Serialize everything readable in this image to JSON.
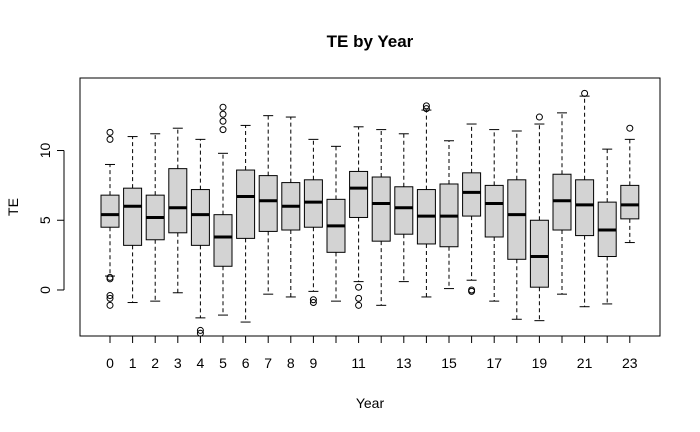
{
  "chart_data": {
    "type": "boxplot",
    "title": "TE by Year",
    "xlabel": "Year",
    "ylabel": "TE",
    "box_fill": "#d3d3d3",
    "ylim": [
      -3.3,
      15.2
    ],
    "y_ticks": [
      0,
      5,
      10
    ],
    "x_tick_labels_shown": [
      "0",
      "1",
      "2",
      "3",
      "4",
      "5",
      "6",
      "7",
      "8",
      "9",
      "11",
      "13",
      "15",
      "17",
      "19",
      "21",
      "23"
    ],
    "boxes": [
      {
        "year": 0,
        "whisker_low": 1.0,
        "q1": 4.5,
        "median": 5.4,
        "q3": 6.8,
        "whisker_high": 9.0,
        "outliers": [
          11.3,
          10.8,
          0.9,
          0.8,
          -0.4,
          -0.6,
          -1.1
        ]
      },
      {
        "year": 1,
        "whisker_low": -0.9,
        "q1": 3.2,
        "median": 6.0,
        "q3": 7.3,
        "whisker_high": 11.0,
        "outliers": []
      },
      {
        "year": 2,
        "whisker_low": -0.8,
        "q1": 3.6,
        "median": 5.2,
        "q3": 6.8,
        "whisker_high": 11.2,
        "outliers": []
      },
      {
        "year": 3,
        "whisker_low": -0.2,
        "q1": 4.1,
        "median": 5.9,
        "q3": 8.7,
        "whisker_high": 11.6,
        "outliers": []
      },
      {
        "year": 4,
        "whisker_low": -2.0,
        "q1": 3.2,
        "median": 5.4,
        "q3": 7.2,
        "whisker_high": 10.8,
        "outliers": [
          -2.9,
          -3.1
        ]
      },
      {
        "year": 5,
        "whisker_low": -1.8,
        "q1": 1.7,
        "median": 3.8,
        "q3": 5.4,
        "whisker_high": 9.8,
        "outliers": [
          13.1,
          12.6,
          12.1,
          11.5
        ]
      },
      {
        "year": 6,
        "whisker_low": -2.3,
        "q1": 3.7,
        "median": 6.7,
        "q3": 8.6,
        "whisker_high": 11.8,
        "outliers": []
      },
      {
        "year": 7,
        "whisker_low": -0.3,
        "q1": 4.2,
        "median": 6.4,
        "q3": 8.2,
        "whisker_high": 12.5,
        "outliers": []
      },
      {
        "year": 8,
        "whisker_low": -0.5,
        "q1": 4.3,
        "median": 6.0,
        "q3": 7.7,
        "whisker_high": 12.4,
        "outliers": []
      },
      {
        "year": 9,
        "whisker_low": -0.1,
        "q1": 4.5,
        "median": 6.3,
        "q3": 7.9,
        "whisker_high": 10.8,
        "outliers": [
          -0.7,
          -0.9
        ]
      },
      {
        "year": 10,
        "whisker_low": -0.8,
        "q1": 2.7,
        "median": 4.6,
        "q3": 6.5,
        "whisker_high": 10.3,
        "outliers": []
      },
      {
        "year": 11,
        "whisker_low": 0.6,
        "q1": 5.2,
        "median": 7.3,
        "q3": 8.5,
        "whisker_high": 11.7,
        "outliers": [
          0.2,
          -0.6,
          -1.1
        ]
      },
      {
        "year": 12,
        "whisker_low": -1.1,
        "q1": 3.5,
        "median": 6.2,
        "q3": 8.1,
        "whisker_high": 11.5,
        "outliers": []
      },
      {
        "year": 13,
        "whisker_low": 0.6,
        "q1": 4.0,
        "median": 5.9,
        "q3": 7.4,
        "whisker_high": 11.2,
        "outliers": []
      },
      {
        "year": 14,
        "whisker_low": -0.5,
        "q1": 3.3,
        "median": 5.3,
        "q3": 7.2,
        "whisker_high": 12.9,
        "outliers": [
          13.2,
          13.0
        ]
      },
      {
        "year": 15,
        "whisker_low": 0.1,
        "q1": 3.1,
        "median": 5.3,
        "q3": 7.6,
        "whisker_high": 10.7,
        "outliers": []
      },
      {
        "year": 16,
        "whisker_low": 0.7,
        "q1": 5.3,
        "median": 7.0,
        "q3": 8.4,
        "whisker_high": 11.9,
        "outliers": [
          0.0,
          -0.1
        ]
      },
      {
        "year": 17,
        "whisker_low": -0.8,
        "q1": 3.8,
        "median": 6.2,
        "q3": 7.5,
        "whisker_high": 11.5,
        "outliers": []
      },
      {
        "year": 18,
        "whisker_low": -2.1,
        "q1": 2.2,
        "median": 5.4,
        "q3": 7.9,
        "whisker_high": 11.4,
        "outliers": []
      },
      {
        "year": 19,
        "whisker_low": -2.2,
        "q1": 0.2,
        "median": 2.4,
        "q3": 5.0,
        "whisker_high": 11.9,
        "outliers": [
          12.4
        ]
      },
      {
        "year": 20,
        "whisker_low": -0.3,
        "q1": 4.3,
        "median": 6.4,
        "q3": 8.3,
        "whisker_high": 12.7,
        "outliers": []
      },
      {
        "year": 21,
        "whisker_low": -1.2,
        "q1": 3.9,
        "median": 6.1,
        "q3": 7.9,
        "whisker_high": 13.9,
        "outliers": [
          14.1
        ]
      },
      {
        "year": 22,
        "whisker_low": -1.0,
        "q1": 2.4,
        "median": 4.3,
        "q3": 6.3,
        "whisker_high": 10.1,
        "outliers": []
      },
      {
        "year": 23,
        "whisker_low": 3.4,
        "q1": 5.1,
        "median": 6.1,
        "q3": 7.5,
        "whisker_high": 10.8,
        "outliers": [
          11.6
        ]
      }
    ]
  }
}
